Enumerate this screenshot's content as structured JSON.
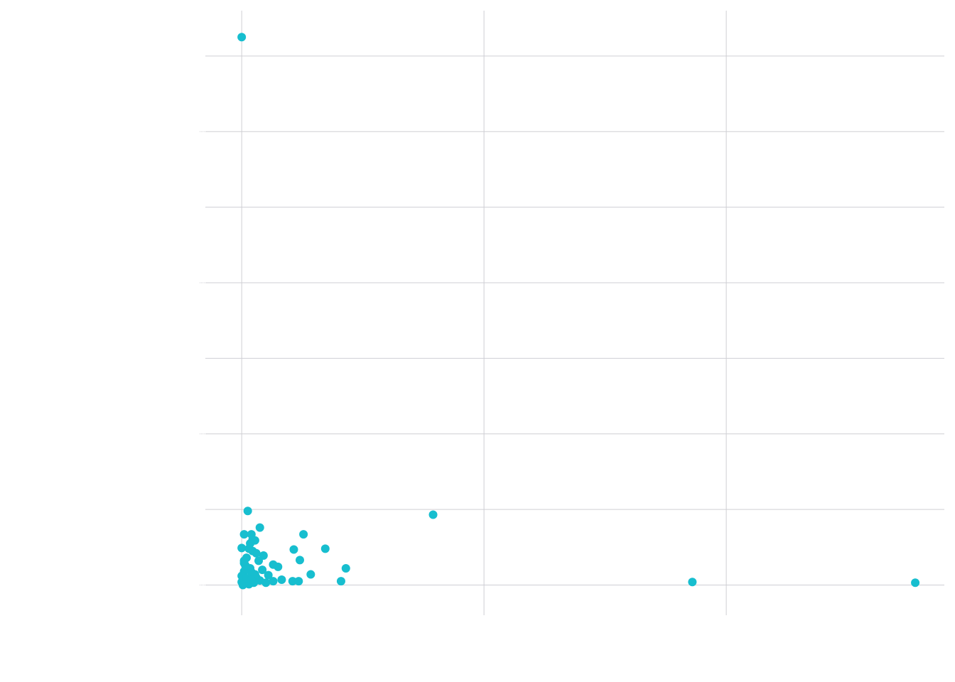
{
  "chart_data": {
    "type": "scatter",
    "title": "",
    "xlabel": "",
    "ylabel": "",
    "xlim": [
      -1.5,
      29
    ],
    "ylim": [
      -0.4,
      7.6
    ],
    "x_gridlines": [
      0,
      10,
      20
    ],
    "y_gridlines": [
      0,
      1,
      2,
      3,
      4,
      5,
      6,
      7
    ],
    "grid": true,
    "legend": "none",
    "point_color": "#17becf",
    "series": [
      {
        "points": [
          [
            0.0,
            7.25
          ],
          [
            0.25,
            0.98
          ],
          [
            7.9,
            0.93
          ],
          [
            0.75,
            0.76
          ],
          [
            0.1,
            0.67
          ],
          [
            0.4,
            0.67
          ],
          [
            2.55,
            0.67
          ],
          [
            0.45,
            0.6
          ],
          [
            0.55,
            0.59
          ],
          [
            0.0,
            0.49
          ],
          [
            0.3,
            0.48
          ],
          [
            2.15,
            0.47
          ],
          [
            3.45,
            0.48
          ],
          [
            0.45,
            0.45
          ],
          [
            0.9,
            0.39
          ],
          [
            0.2,
            0.36
          ],
          [
            0.7,
            0.32
          ],
          [
            2.4,
            0.33
          ],
          [
            0.1,
            0.29
          ],
          [
            1.3,
            0.27
          ],
          [
            1.5,
            0.24
          ],
          [
            0.35,
            0.22
          ],
          [
            0.85,
            0.2
          ],
          [
            4.3,
            0.22
          ],
          [
            0.1,
            0.18
          ],
          [
            0.4,
            0.17
          ],
          [
            1.1,
            0.13
          ],
          [
            2.85,
            0.14
          ],
          [
            0.0,
            0.12
          ],
          [
            0.6,
            0.1
          ],
          [
            1.65,
            0.07
          ],
          [
            0.25,
            0.06
          ],
          [
            0.75,
            0.06
          ],
          [
            1.3,
            0.05
          ],
          [
            2.1,
            0.05
          ],
          [
            2.35,
            0.05
          ],
          [
            4.1,
            0.05
          ],
          [
            0.0,
            0.04
          ],
          [
            0.5,
            0.03
          ],
          [
            1.0,
            0.03
          ],
          [
            18.6,
            0.04
          ],
          [
            27.8,
            0.03
          ],
          [
            0.05,
            0.02
          ],
          [
            0.3,
            0.01
          ],
          [
            0.05,
            0.0
          ],
          [
            0.2,
            0.09
          ],
          [
            0.55,
            0.14
          ],
          [
            0.15,
            0.26
          ],
          [
            0.6,
            0.42
          ],
          [
            0.35,
            0.55
          ],
          [
            0.1,
            0.32
          ],
          [
            0.4,
            0.07
          ]
        ]
      }
    ]
  }
}
